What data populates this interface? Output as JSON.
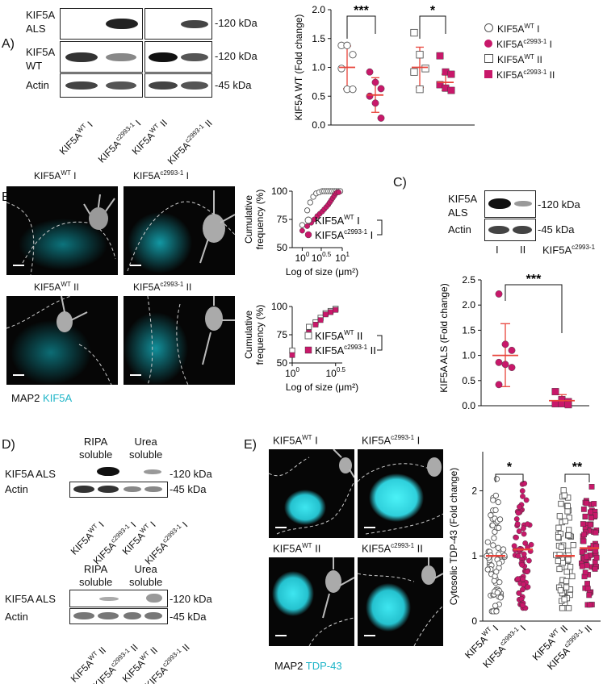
{
  "panels": {
    "A": {
      "letter": "A)",
      "row_labels": [
        "KIF5A\nALS",
        "KIF5A\nWT",
        "Actin"
      ],
      "kda": [
        "-120 kDa",
        "-120 kDa",
        "-45 kDa"
      ],
      "lanes": [
        {
          "base": "KIF5A",
          "sup": "WT",
          "suffix": " I"
        },
        {
          "base": "KIF5A",
          "sup": "c2993-1",
          "suffix": " I"
        },
        {
          "base": "KIF5A",
          "sup": "WT",
          "suffix": " II"
        },
        {
          "base": "KIF5A",
          "sup": "c2993-1",
          "suffix": " II"
        }
      ]
    },
    "B": {
      "letter": "B)",
      "titles": [
        {
          "base": "KIF5A",
          "sup": "WT",
          "suffix": " I"
        },
        {
          "base": "KIF5A",
          "sup": "c2993-1",
          "suffix": " I"
        },
        {
          "base": "KIF5A",
          "sup": "WT",
          "suffix": " II"
        },
        {
          "base": "KIF5A",
          "sup": "c2993-1",
          "suffix": "  II"
        }
      ],
      "stain_a": "MAP2",
      "stain_b": "KIF5A"
    },
    "C": {
      "letter": "C)",
      "row_labels": [
        "KIF5A\nALS",
        "Actin"
      ],
      "kda": [
        "-120 kDa",
        "-45 kDa"
      ],
      "lane_labels": [
        "I",
        "II"
      ],
      "genotype": {
        "base": "KIF5A",
        "sup": "c2993-1"
      }
    },
    "D": {
      "letter": "D)",
      "headers": [
        "RIPA\nsoluble",
        "Urea\nsoluble"
      ],
      "row_labels": [
        "KIF5A ALS",
        "Actin"
      ],
      "kda": [
        "-120 kDa",
        "-45 kDa"
      ],
      "lanes_top": [
        {
          "base": "KIF5A",
          "sup": "WT",
          "suffix": " I"
        },
        {
          "base": "KIF5A",
          "sup": "c2993-1",
          "suffix": " I"
        },
        {
          "base": "KIF5A",
          "sup": "WT",
          "suffix": " I"
        },
        {
          "base": "KIF5A",
          "sup": "c2993-1",
          "suffix": " I"
        }
      ],
      "lanes_bottom": [
        {
          "base": "KIF5A",
          "sup": "WT",
          "suffix": " II"
        },
        {
          "base": "KIF5A",
          "sup": "c2993-1",
          "suffix": " II"
        },
        {
          "base": "KIF5A",
          "sup": "WT",
          "suffix": " II"
        },
        {
          "base": "KIF5A",
          "sup": "c2993-1",
          "suffix": " II"
        }
      ]
    },
    "E": {
      "letter": "E)",
      "titles": [
        {
          "base": "KIF5A",
          "sup": "WT",
          "suffix": " I"
        },
        {
          "base": "KIF5A",
          "sup": "c2993-1",
          "suffix": " I"
        },
        {
          "base": "KIF5A",
          "sup": "WT",
          "suffix": " II"
        },
        {
          "base": "KIF5A",
          "sup": "c2993-1",
          "suffix": " II"
        }
      ],
      "stain_a": "MAP2",
      "stain_b": "TDP-43"
    }
  },
  "colors": {
    "wt_red": "#e8433a",
    "mut_magenta": "#c8186a",
    "cyan": "#1fb5c8"
  },
  "chart_data": [
    {
      "id": "A-kif5a-wt",
      "type": "scatter",
      "ylabel": "KIF5A WT (Fold change)",
      "ylim": [
        0,
        2.0
      ],
      "yticks": [
        "0.0",
        "0.5",
        "1.0",
        "1.5",
        "2.0"
      ],
      "groups": [
        {
          "series": 0,
          "points": [
            1.38,
            1.38,
            1.22,
            0.98,
            0.62,
            0.62
          ],
          "mean": 1.0,
          "sd_low": 0.63,
          "sd_high": 1.37
        },
        {
          "series": 1,
          "points": [
            0.92,
            0.74,
            0.63,
            0.5,
            0.38,
            0.12
          ],
          "mean": 0.52,
          "sd_low": 0.22,
          "sd_high": 0.82
        },
        {
          "series": 2,
          "points": [
            1.6,
            1.22,
            0.98,
            0.92,
            0.62
          ],
          "mean": 1.0,
          "sd_low": 0.65,
          "sd_high": 1.35
        },
        {
          "series": 3,
          "points": [
            1.2,
            0.92,
            0.88,
            0.7,
            0.64,
            0.6
          ],
          "mean": 0.74,
          "sd_low": 0.6,
          "sd_high": 0.88
        }
      ],
      "sig": [
        {
          "from": 0,
          "to": 1,
          "label": "***"
        },
        {
          "from": 2,
          "to": 3,
          "label": "*"
        }
      ],
      "legend": [
        {
          "base": "KIF5A",
          "sup": "WT",
          "suffix": " I",
          "marker": "circle-open"
        },
        {
          "base": "KIF5A",
          "sup": "c2993-1",
          "suffix": " I",
          "marker": "circle-filled"
        },
        {
          "base": "KIF5A",
          "sup": "WT",
          "suffix": " II",
          "marker": "square-open"
        },
        {
          "base": "KIF5A",
          "sup": "c2993-1",
          "suffix": " II",
          "marker": "square-filled"
        }
      ]
    },
    {
      "id": "B-cdf-I",
      "type": "scatter",
      "ylabel": "Cumulative\nfrequency (%)",
      "xlabel": "Log of size (μm²)",
      "ylim": [
        50,
        100
      ],
      "yticks": [
        "50",
        "75",
        "100"
      ],
      "xticks": [
        {
          "base": "10",
          "sup": "0"
        },
        {
          "base": "10",
          "sup": "0.5"
        },
        {
          "base": "10",
          "sup": "1"
        }
      ],
      "wt": {
        "x": [
          0.2,
          0.3,
          0.36,
          0.42,
          0.48,
          0.54,
          0.6,
          0.64,
          0.68,
          0.72,
          0.76,
          0.8,
          0.84,
          0.88,
          0.92,
          0.96
        ],
        "y": [
          70,
          83,
          90,
          95,
          98,
          99,
          100,
          100,
          100,
          100,
          100,
          100,
          100,
          100,
          100,
          100
        ]
      },
      "mut": {
        "x": [
          0.2,
          0.3,
          0.38,
          0.44,
          0.5,
          0.55,
          0.6,
          0.64,
          0.68,
          0.72,
          0.75,
          0.78,
          0.81,
          0.84,
          0.87,
          0.9,
          0.93
        ],
        "y": [
          65,
          69,
          72,
          75,
          78,
          80,
          82,
          84,
          86,
          88,
          90,
          92,
          94,
          96,
          98,
          99,
          99
        ]
      },
      "legend": [
        {
          "base": "KIF5A",
          "sup": "WT",
          "suffix": " I"
        },
        {
          "base": "KIF5A",
          "sup": "c2993-1",
          "suffix": " I"
        }
      ],
      "sig": "****"
    },
    {
      "id": "B-cdf-II",
      "type": "scatter",
      "ylabel": "Cumulative\nfrequency (%)",
      "xlabel": "Log of size (μm²)",
      "ylim": [
        50,
        100
      ],
      "yticks": [
        "50",
        "75",
        "100"
      ],
      "xticks": [
        {
          "base": "10",
          "sup": "0"
        },
        {
          "base": "10",
          "sup": "0.5"
        }
      ],
      "wt": {
        "x": [
          0.0,
          0.2,
          0.28,
          0.34,
          0.4,
          0.46,
          0.52
        ],
        "y": [
          61,
          82,
          86,
          90,
          94,
          96,
          98
        ]
      },
      "mut": {
        "x": [
          0.0,
          0.2,
          0.28,
          0.34,
          0.4,
          0.46,
          0.52
        ],
        "y": [
          57,
          77,
          84,
          88,
          93,
          95,
          97
        ]
      },
      "legend": [
        {
          "base": "KIF5A",
          "sup": "WT",
          "suffix": " II"
        },
        {
          "base": "KIF5A",
          "sup": "c2993-1",
          "suffix": " II"
        }
      ],
      "sig": "***"
    },
    {
      "id": "C-kif5a-als",
      "type": "scatter",
      "ylabel": "KIF5A ALS (Fold change)",
      "ylim": [
        0,
        2.5
      ],
      "yticks": [
        "0.0",
        "0.5",
        "1.0",
        "1.5",
        "2.0",
        "2.5"
      ],
      "groups": [
        {
          "points": [
            2.22,
            1.22,
            1.1,
            0.86,
            0.82,
            0.76,
            0.42
          ],
          "mean": 1.0,
          "sd_low": 0.38,
          "sd_high": 1.63,
          "marker": "circle-filled"
        },
        {
          "points": [
            0.28,
            0.12,
            0.08,
            0.04,
            0.04,
            0.02
          ],
          "mean": 0.1,
          "sd_low": 0.0,
          "sd_high": 0.22,
          "marker": "square-filled"
        }
      ],
      "sig": "***"
    },
    {
      "id": "E-cyto-tdp43",
      "type": "scatter",
      "ylabel": "Cytosolic TDP-43 (Fold change)",
      "ylim": [
        0,
        2.6
      ],
      "yticks": [
        "0",
        "1",
        "2"
      ],
      "groups": [
        {
          "mean": 1.0,
          "range": [
            0.15,
            2.35
          ],
          "marker": "circle-open"
        },
        {
          "mean": 1.1,
          "range": [
            0.2,
            2.2
          ],
          "marker": "circle-filled"
        },
        {
          "mean": 1.0,
          "range": [
            0.2,
            2.15
          ],
          "marker": "square-open"
        },
        {
          "mean": 1.12,
          "range": [
            0.25,
            2.25
          ],
          "marker": "square-filled"
        }
      ],
      "sig": [
        {
          "from": 0,
          "to": 1,
          "label": "*"
        },
        {
          "from": 2,
          "to": 3,
          "label": "**"
        }
      ],
      "categories": [
        {
          "base": "KIF5A",
          "sup": "WT",
          "suffix": " I"
        },
        {
          "base": "KIF5A",
          "sup": "c2993-1",
          "suffix": " I"
        },
        {
          "base": "KIF5A",
          "sup": "WT",
          "suffix": " II"
        },
        {
          "base": "KIF5A",
          "sup": "c2993-1",
          "suffix": " II"
        }
      ]
    }
  ]
}
